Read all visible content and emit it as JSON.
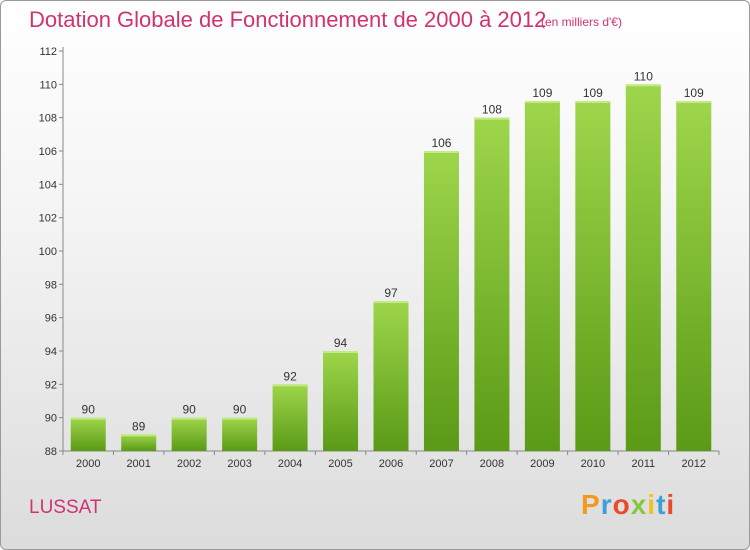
{
  "title": "Dotation Globale de Fonctionnement de 2000 à 2012",
  "subtitle": "(en milliers d'€)",
  "commune": "LUSSAT",
  "brand": {
    "letters": [
      "P",
      "r",
      "o",
      "x",
      "i",
      "t",
      "i"
    ],
    "colors": [
      "#f39a1e",
      "#3aa0d8",
      "#e94a2a",
      "#8bc53f",
      "#f2c21b",
      "#3aa0d8",
      "#e94a2a"
    ]
  },
  "colors": {
    "bar": "#7dc230",
    "bar_light": "#9ed64b",
    "bar_dark": "#5a9a16",
    "text_accent": "#d2326e"
  },
  "chart_data": {
    "type": "bar",
    "categories": [
      "2000",
      "2001",
      "2002",
      "2003",
      "2004",
      "2005",
      "2006",
      "2007",
      "2008",
      "2009",
      "2010",
      "2011",
      "2012"
    ],
    "values": [
      90,
      89,
      90,
      90,
      92,
      94,
      97,
      106,
      108,
      109,
      109,
      110,
      109
    ],
    "ylim": [
      88,
      112
    ],
    "yticks": [
      88,
      90,
      92,
      94,
      96,
      98,
      100,
      102,
      104,
      106,
      108,
      110,
      112
    ],
    "grid": false,
    "xlabel": "",
    "ylabel": ""
  }
}
